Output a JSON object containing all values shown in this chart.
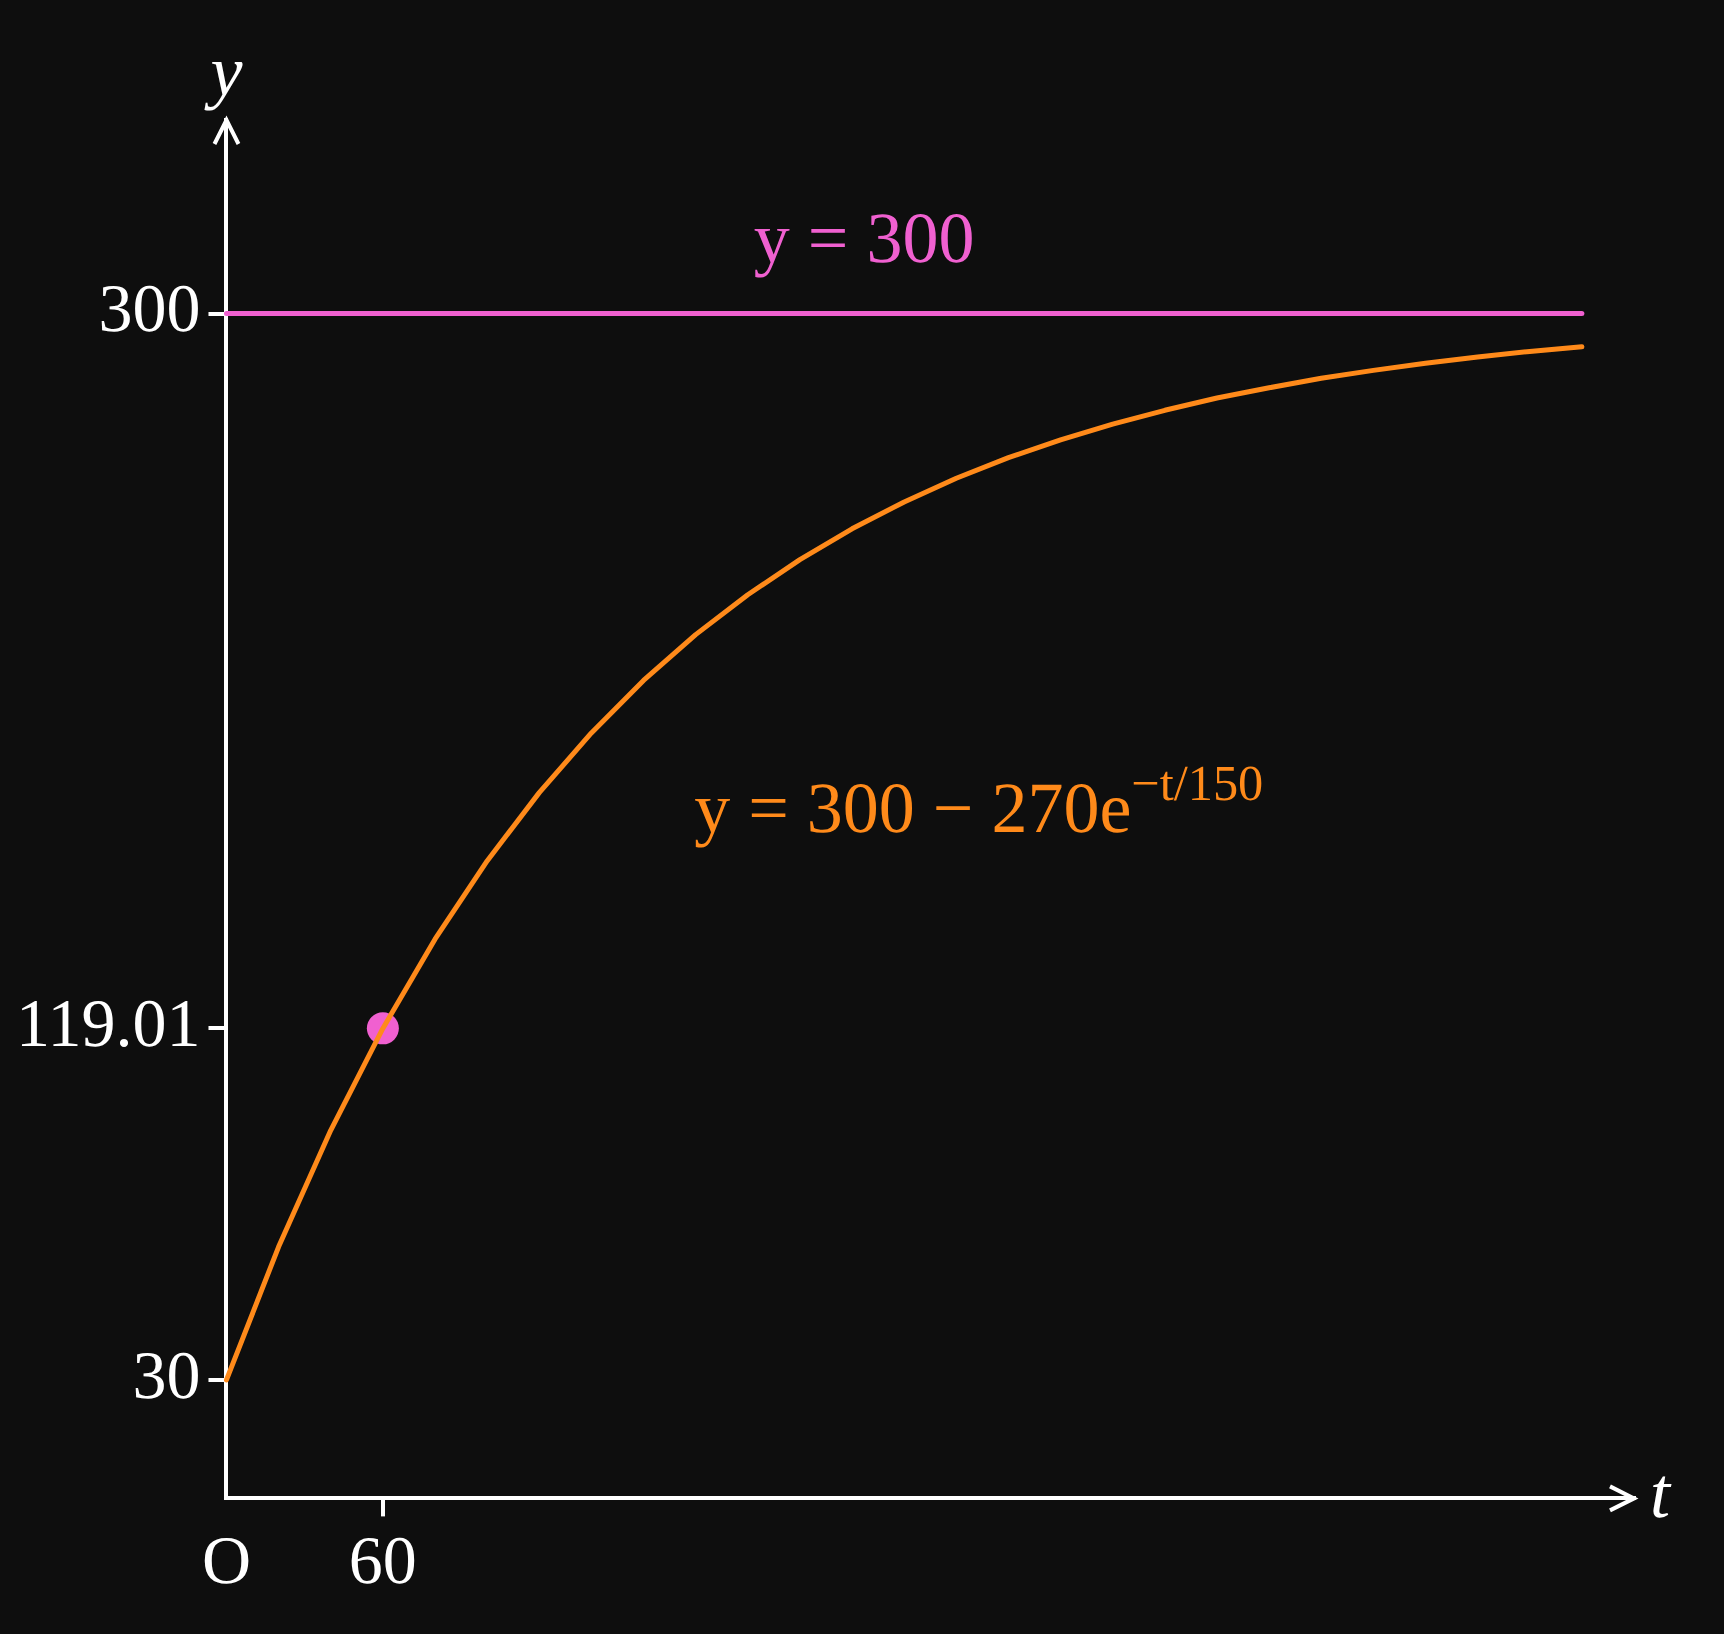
{
  "chart_data": {
    "type": "line",
    "xlabel": "t",
    "ylabel": "y",
    "categories": [
      "O",
      null,
      null,
      "60",
      null,
      null,
      null,
      null,
      null,
      null,
      null,
      null,
      null,
      null,
      null,
      null,
      null,
      null,
      null,
      null,
      null,
      null,
      null,
      null,
      null,
      null,
      null,
      null
    ],
    "ylim": [
      0,
      349
    ],
    "yticks": [
      30,
      119.01,
      300
    ],
    "grid": false,
    "legend": false,
    "marker": "none",
    "line_style": "solid",
    "series": [
      {
        "name": "y = 300",
        "color": "#f060d0",
        "values": [
          300,
          300,
          300,
          300,
          300,
          300,
          300,
          300,
          300,
          300,
          300,
          300,
          300,
          300,
          300,
          300,
          300,
          300,
          300,
          300,
          300,
          300,
          300,
          300,
          300,
          300,
          300,
          null
        ]
      },
      {
        "name": "y = 300 − 270e$^{−t/150}$",
        "color": "#ff8a1a",
        "values": [
          30,
          63.7,
          93.2,
          119.0,
          141.6,
          161.4,
          178.7,
          193.8,
          207.1,
          218.7,
          228.8,
          237.7,
          245.5,
          252.3,
          258.3,
          263.5,
          268.0,
          272.0,
          275.5,
          278.6,
          281.2,
          283.6,
          285.6,
          287.4,
          289.0,
          290.4,
          291.6,
          null
        ]
      },
      {
        "type": "scatter",
        "color": "#f060d0",
        "marker": "circle",
        "x": [
          "60"
        ],
        "values": [
          119.01
        ]
      }
    ]
  }
}
